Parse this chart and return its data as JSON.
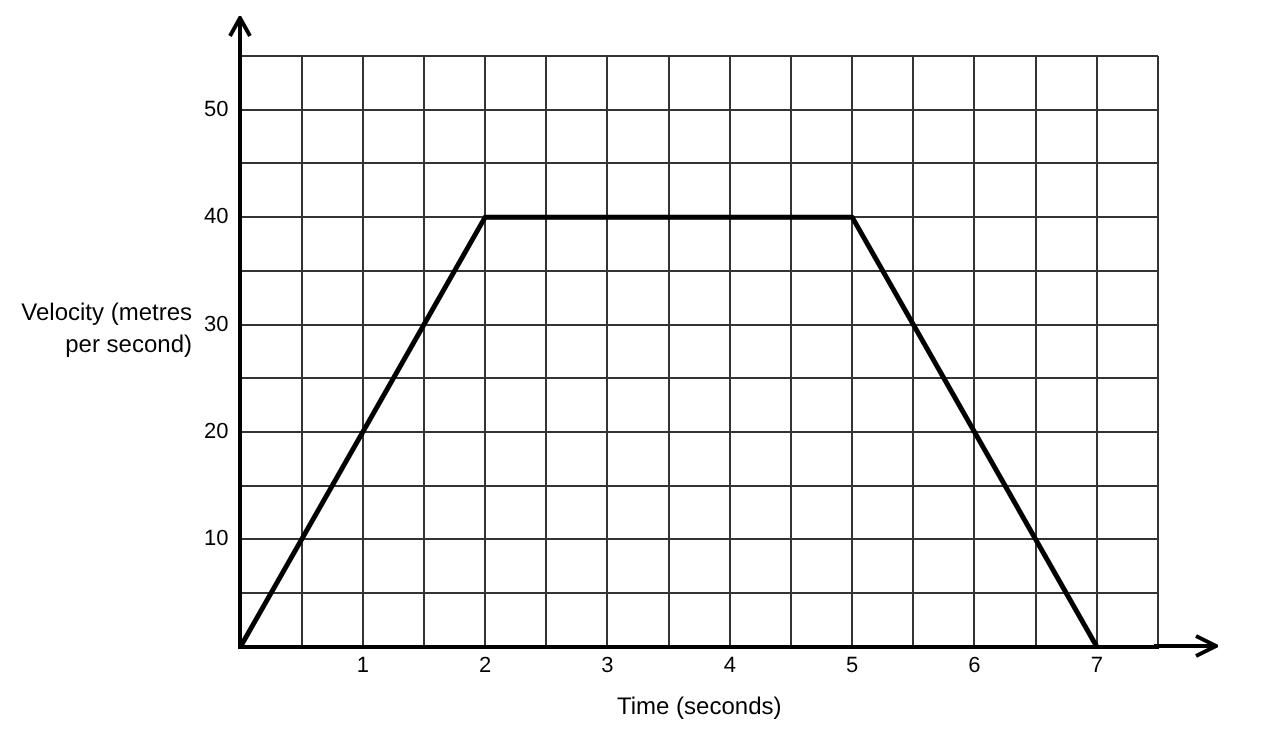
{
  "chart_data": {
    "type": "line",
    "xlabel": "Time (seconds)",
    "ylabel": "Velocity (metres per second)",
    "x": [
      0,
      2,
      5,
      7
    ],
    "series": [
      {
        "color": "#000000",
        "values": [
          0,
          40,
          40,
          0
        ]
      }
    ],
    "xlim": [
      0,
      7.5
    ],
    "ylim": [
      0,
      55
    ],
    "xticks": [
      {
        "value": 0,
        "label": null
      },
      {
        "value": 0.5,
        "label": null
      },
      1,
      {
        "value": 1.5,
        "label": null
      },
      2,
      {
        "value": 2.5,
        "label": null
      },
      3,
      {
        "value": 3.5,
        "label": null
      },
      4,
      {
        "value": 4.5,
        "label": null
      },
      5,
      {
        "value": 5.5,
        "label": null
      },
      6,
      {
        "value": 6.5,
        "label": null
      },
      7,
      {
        "value": 7.5,
        "label": null
      }
    ],
    "yticks": [
      {
        "value": 0,
        "label": null
      },
      {
        "value": 5,
        "label": null
      },
      10,
      {
        "value": 15,
        "label": null
      },
      20,
      {
        "value": 25,
        "label": null
      },
      30,
      {
        "value": 35,
        "label": null
      },
      40,
      {
        "value": 45,
        "label": null
      },
      50,
      {
        "value": 55,
        "label": null
      }
    ],
    "grid": true,
    "marker": "none",
    "line_style": "solid"
  }
}
